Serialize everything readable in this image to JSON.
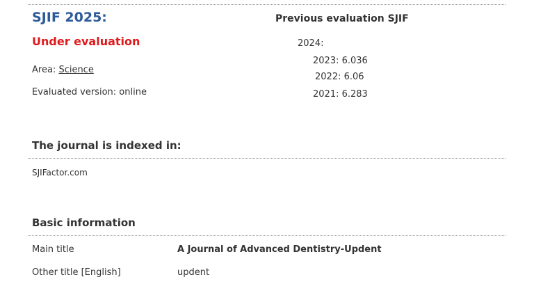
{
  "evaluation": {
    "title": "SJIF 2025:",
    "status": "Under evaluation",
    "area_label": "Area:",
    "area_link": "Science",
    "version": "Evaluated version: online"
  },
  "previous": {
    "title": "Previous evaluation SJIF",
    "years": [
      "2024:",
      "2023: 6.036",
      "2022: 6.06",
      "2021: 6.283"
    ]
  },
  "indexed": {
    "title": "The journal is indexed in:",
    "items": [
      "SJIFactor.com"
    ]
  },
  "basic": {
    "title": "Basic information",
    "rows": [
      [
        "Main title",
        "A Journal of Advanced Dentistry-Updent"
      ],
      [
        "Other title [English]",
        "updent"
      ]
    ]
  }
}
